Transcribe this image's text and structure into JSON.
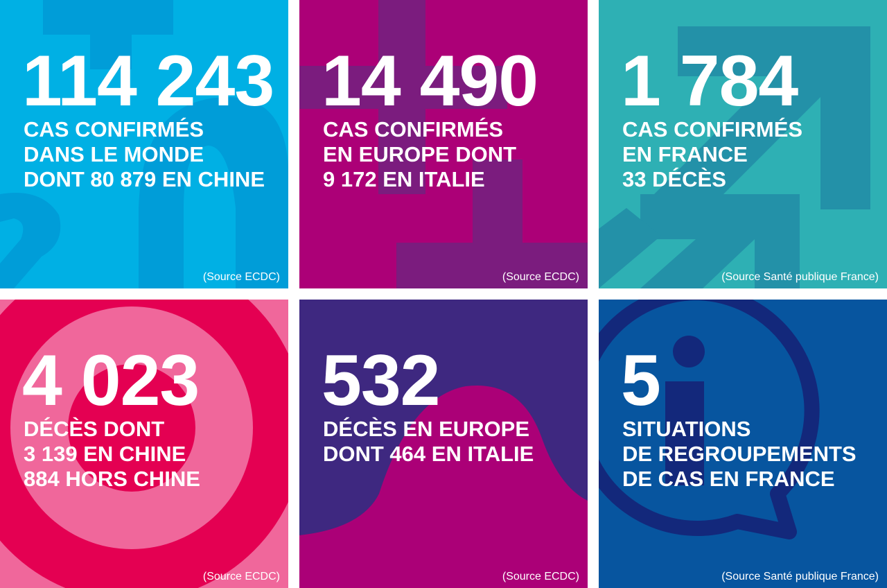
{
  "tiles": [
    {
      "number": "114 243",
      "lines": [
        "CAS CONFIRMÉS",
        "DANS LE MONDE",
        "DONT 80 879 EN CHINE"
      ],
      "source": "(Source ECDC)",
      "bg": "#00b0e4",
      "accent": "#009dd8"
    },
    {
      "number": "14 490",
      "lines": [
        "CAS CONFIRMÉS",
        "EN EUROPE DONT",
        "9 172 EN ITALIE"
      ],
      "source": "(Source ECDC)",
      "bg": "#ac0077",
      "accent": "#7b1c7e"
    },
    {
      "number": "1 784",
      "lines": [
        "CAS CONFIRMÉS",
        "EN FRANCE",
        "33 DÉCÈS"
      ],
      "source": "(Source Santé publique France)",
      "bg": "#2eb0b4",
      "accent": "#2391a8"
    },
    {
      "number": "4 023",
      "lines": [
        "DÉCÈS DONT",
        "3 139 EN CHINE",
        "884 HORS CHINE"
      ],
      "source": "(Source ECDC)",
      "bg": "#f0679b",
      "accent": "#e40052"
    },
    {
      "number": "532",
      "lines": [
        "DÉCÈS EN EUROPE",
        "DONT 464 EN ITALIE"
      ],
      "source": "(Source ECDC)",
      "bg": "#3e2880",
      "accent": "#ab0077"
    },
    {
      "number": "5",
      "lines": [
        "SITUATIONS",
        "DE REGROUPEMENTS",
        "DE CAS EN FRANCE"
      ],
      "source": "(Source Santé publique France)",
      "bg": "#07559f",
      "accent": "#13287b"
    }
  ]
}
